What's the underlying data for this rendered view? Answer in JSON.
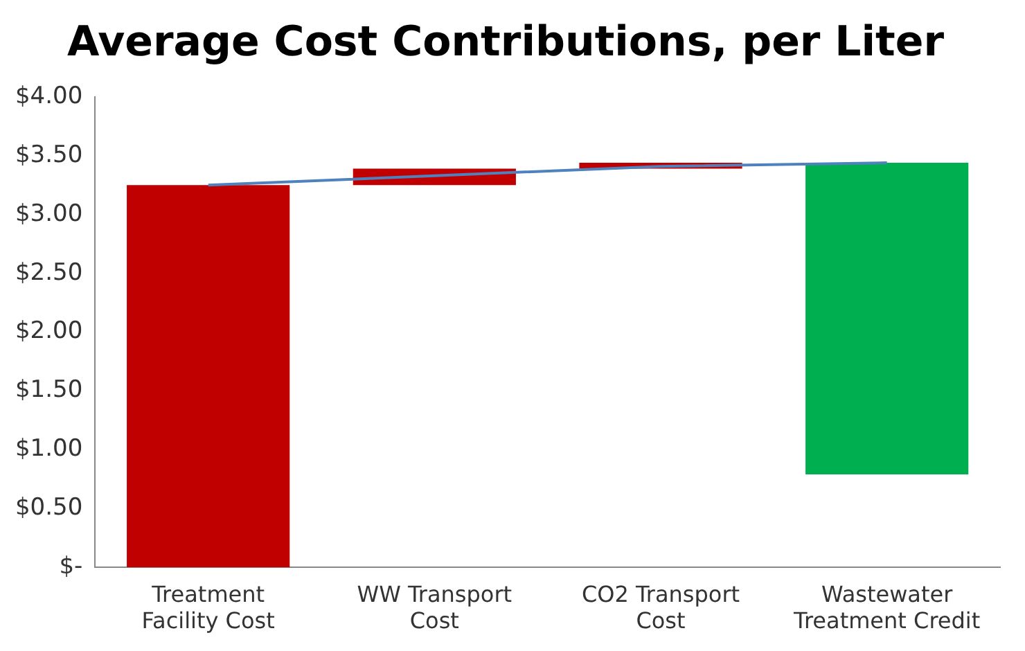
{
  "chart_data": {
    "type": "bar",
    "title": "Average Cost Contributions, per Liter",
    "categories": [
      "Treatment Facility Cost",
      "WW Transport Cost",
      "CO2 Transport Cost",
      "Wastewater Treatment Credit"
    ],
    "series": [
      {
        "values": [
          3.25,
          0.14,
          0.05,
          -2.65
        ],
        "base": [
          0,
          3.25,
          3.39,
          3.44
        ],
        "colors": [
          "#c00000",
          "#c00000",
          "#c00000",
          "#00b050"
        ]
      },
      {
        "type": "line",
        "values": [
          3.25,
          3.33,
          3.41,
          3.44
        ],
        "color": "#4f81bd"
      }
    ],
    "ylim": [
      0,
      4
    ],
    "yticks": [
      {
        "value": 0,
        "label": "$-"
      },
      {
        "value": 0.5,
        "label": "$0.50"
      },
      {
        "value": 1,
        "label": "$1.00"
      },
      {
        "value": 1.5,
        "label": "$1.50"
      },
      {
        "value": 2,
        "label": "$2.00"
      },
      {
        "value": 2.5,
        "label": "$2.50"
      },
      {
        "value": 3,
        "label": "$3.00"
      },
      {
        "value": 3.5,
        "label": "$3.50"
      },
      {
        "value": 4,
        "label": "$4.00"
      }
    ],
    "grid": false,
    "legend": false,
    "marker": "none"
  }
}
